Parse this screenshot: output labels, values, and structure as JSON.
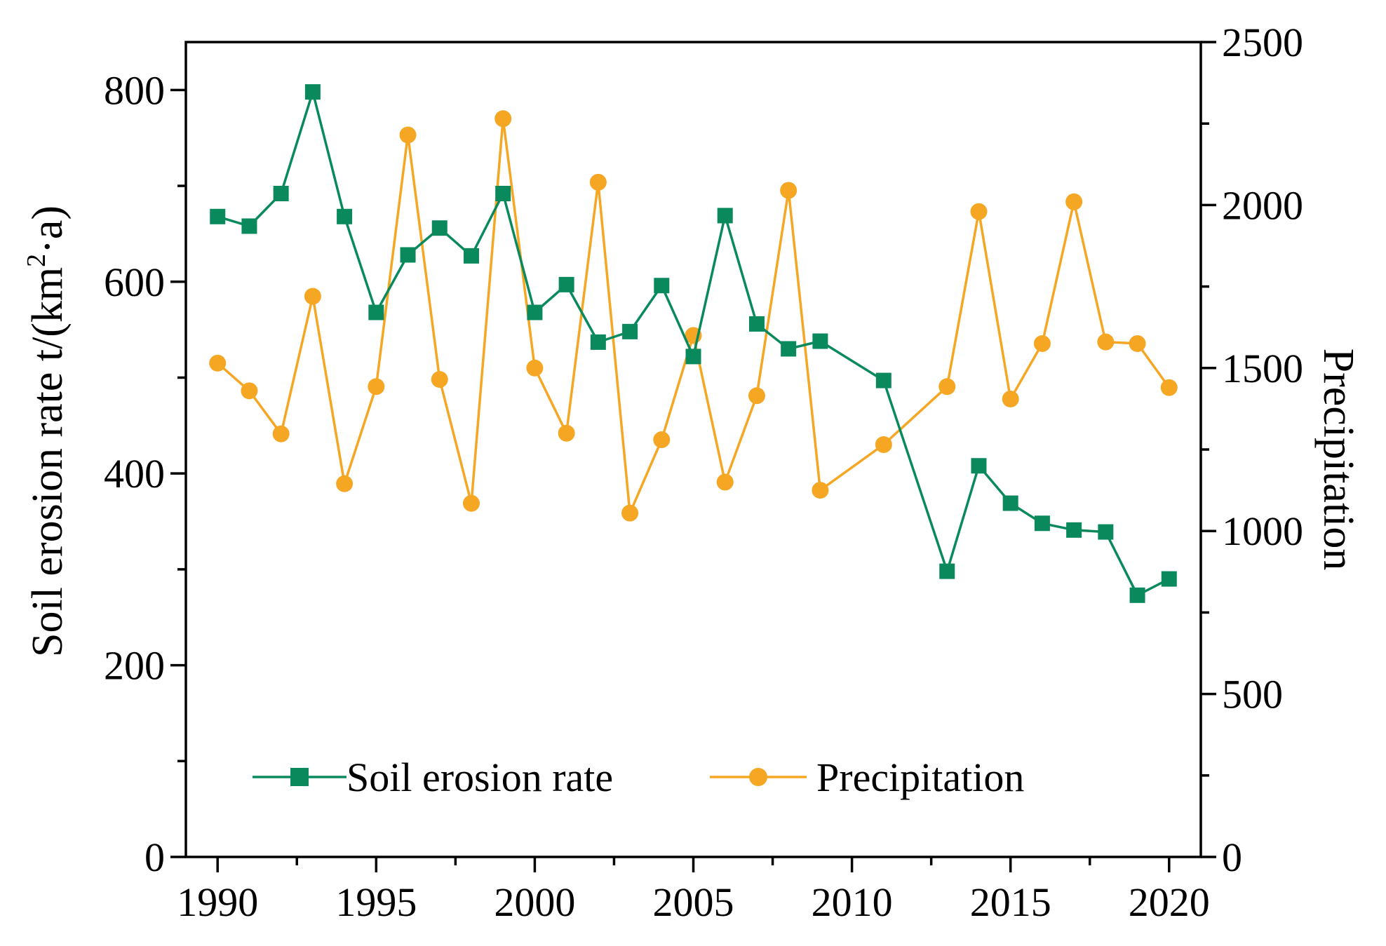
{
  "chart_data": {
    "type": "line",
    "title": "",
    "xlabel": "",
    "ylabel_left": "Soil erosion rate t/(km",
    "ylabel_left_sup": "2",
    "ylabel_left_suffix": "·a)",
    "ylabel_right": "Precipitation",
    "xlim": [
      1989,
      2021
    ],
    "ylim_left": [
      0,
      850
    ],
    "ylim_right": [
      0,
      2500
    ],
    "x_ticks_major": [
      1990,
      1995,
      2000,
      2005,
      2010,
      2015,
      2020
    ],
    "x_ticks_minor": [
      1992.5,
      1997.5,
      2002.5,
      2007.5,
      2012.5,
      2017.5
    ],
    "y_left_ticks_major": [
      0,
      200,
      400,
      600,
      800
    ],
    "y_left_ticks_minor": [
      100,
      300,
      500,
      700
    ],
    "y_right_ticks_major": [
      0,
      500,
      1000,
      1500,
      2000,
      2500
    ],
    "y_right_ticks_minor": [
      250,
      750,
      1250,
      1750,
      2250
    ],
    "grid": false,
    "legend_position": "bottom-center",
    "series": [
      {
        "name": "Soil erosion rate",
        "axis": "left",
        "marker": "square",
        "color": "#0a8a5c",
        "x": [
          1990,
          1991,
          1992,
          1993,
          1994,
          1995,
          1996,
          1997,
          1998,
          1999,
          2000,
          2001,
          2002,
          2003,
          2004,
          2005,
          2006,
          2007,
          2008,
          2009,
          2011,
          2013,
          2014,
          2015,
          2016,
          2017,
          2018,
          2019,
          2020
        ],
        "values": [
          668,
          658,
          692,
          798,
          668,
          568,
          628,
          656,
          627,
          692,
          568,
          597,
          537,
          548,
          596,
          522,
          669,
          556,
          530,
          538,
          497,
          298,
          408,
          369,
          348,
          341,
          339,
          273,
          290
        ]
      },
      {
        "name": "Precipitation",
        "axis": "right",
        "marker": "circle",
        "color": "#f5a623",
        "x": [
          1990,
          1991,
          1992,
          1993,
          1994,
          1995,
          1996,
          1997,
          1998,
          1999,
          2000,
          2001,
          2002,
          2003,
          2004,
          2005,
          2006,
          2007,
          2008,
          2009,
          2011,
          2013,
          2014,
          2015,
          2016,
          2017,
          2018,
          2019,
          2020
        ],
        "values": [
          1515,
          1430,
          1298,
          1720,
          1145,
          1443,
          2215,
          1465,
          1085,
          2265,
          1500,
          1300,
          2070,
          1055,
          1280,
          1600,
          1150,
          1415,
          2045,
          1125,
          1265,
          1443,
          1980,
          1405,
          1575,
          2010,
          1580,
          1575,
          1440
        ]
      }
    ]
  }
}
